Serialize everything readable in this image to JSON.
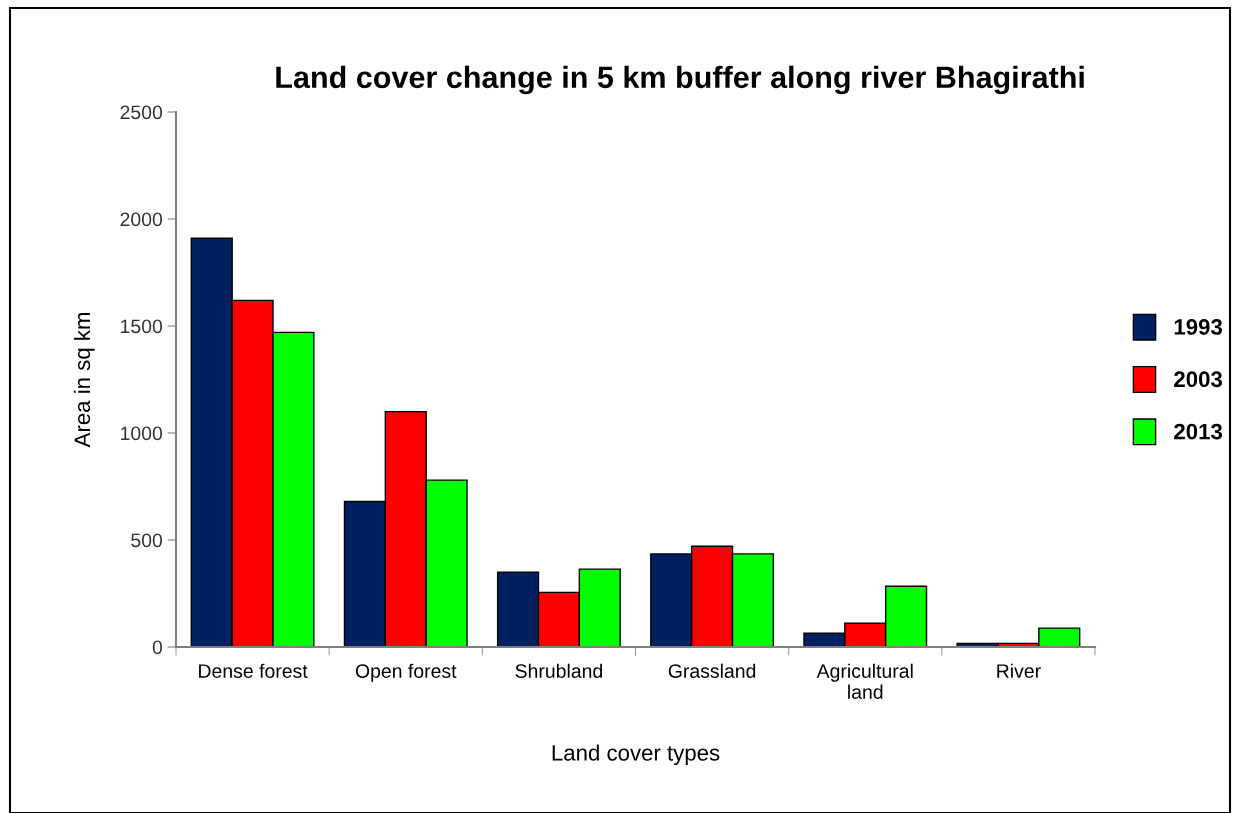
{
  "chart_data": {
    "type": "bar",
    "title": "Land cover change in 5 km buffer along river Bhagirathi",
    "xlabel": "Land cover types",
    "ylabel": "Area in sq km",
    "categories": [
      "Dense forest",
      "Open forest",
      "Shrubland",
      "Grassland",
      "Agricultural\nland",
      "River"
    ],
    "series": [
      {
        "name": "1993",
        "color": "#002060",
        "values": [
          1910,
          680,
          350,
          435,
          65,
          17
        ]
      },
      {
        "name": "2003",
        "color": "#ff0000",
        "values": [
          1620,
          1100,
          255,
          471,
          111,
          17
        ]
      },
      {
        "name": "2013",
        "color": "#00ff00",
        "values": [
          1470,
          780,
          364,
          435,
          284,
          88
        ]
      }
    ],
    "ylim": [
      0,
      2500
    ],
    "yticks": [
      0,
      500,
      1000,
      1500,
      2000,
      2500
    ],
    "grid": false,
    "legend": "right"
  }
}
